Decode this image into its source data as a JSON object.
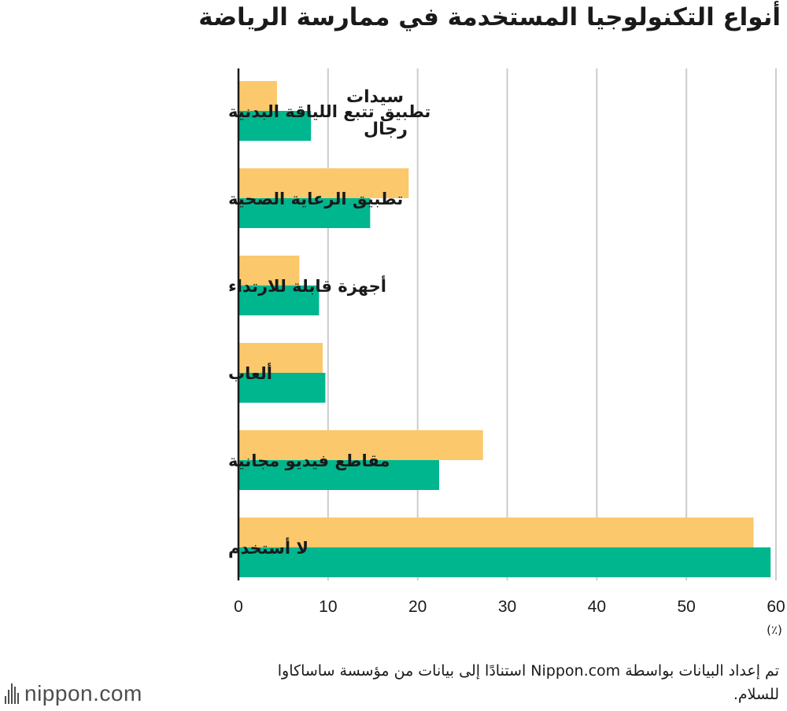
{
  "title": "أنواع التكنولوجيا المستخدمة في ممارسة الرياضة",
  "source_note": "تم إعداد البيانات بواسطة Nippon.com استنادًا إلى بيانات من مؤسسة ساساكاوا للسلام.",
  "logo_text": "nippon",
  "logo_suffix": ".com",
  "colors": {
    "women": "#fcc86c",
    "men": "#00b68f",
    "grid": "#cccccc",
    "axis": "#1a1a1a"
  },
  "chart_data": {
    "type": "bar",
    "orientation": "horizontal",
    "categories": [
      "تطبيق تتبع اللياقة البدنية",
      "تطبيق الرعاية الصحية",
      "أجهزة قابلة للارتداء",
      "ألعاب",
      "مقاطع فيديو مجانية",
      "لا أستخدم"
    ],
    "series": [
      {
        "name": "سيدات",
        "color": "#fcc86c",
        "values": [
          4.3,
          19.0,
          6.8,
          9.4,
          27.3,
          57.5
        ]
      },
      {
        "name": "رجال",
        "color": "#00b68f",
        "values": [
          8.1,
          14.7,
          9.0,
          9.7,
          22.4,
          59.4
        ]
      }
    ],
    "xlim": [
      0,
      60
    ],
    "xticks": [
      0,
      10,
      20,
      30,
      40,
      50,
      60
    ],
    "unit": "(٪)",
    "grid": true,
    "legend_placement": "inside, next to first category bars"
  }
}
